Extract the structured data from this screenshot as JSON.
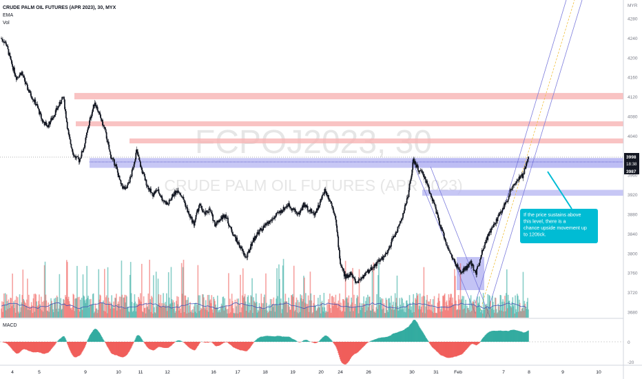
{
  "header": {
    "title": "CRUDE PALM OIL FUTURES (APR 2023), 30, MYX",
    "indicators": [
      "EMA",
      "Vol"
    ]
  },
  "watermark": {
    "symbol": "FCPOJ2023, 30",
    "name": "CRUDE PALM OIL FUTURES (APR 2023)"
  },
  "price_axis": {
    "currency": "MYR",
    "ticks": [
      "4280",
      "4240",
      "4200",
      "4160",
      "4120",
      "4080",
      "4040",
      "4000",
      "3960",
      "3920",
      "3880",
      "3840",
      "3800",
      "3760",
      "3720",
      "3680"
    ],
    "last_price": "3998",
    "countdown": "18:38",
    "second_price": "3987"
  },
  "time_axis": {
    "ticks": [
      "4",
      "5",
      "9",
      "10",
      "11",
      "12",
      "16",
      "17",
      "18",
      "19",
      "20",
      "24",
      "26",
      "30",
      "31",
      "Feb",
      "7",
      "8",
      "9",
      "10"
    ]
  },
  "macd": {
    "label": "MACD",
    "ticks": [
      "0",
      "-20"
    ]
  },
  "annotation": {
    "text": "If the price sustains above this level, there is a chance upside movement up to 120tick."
  },
  "colors": {
    "up": "#26a69a",
    "down": "#ef5350",
    "zone_red": "#f7b4b4",
    "zone_blue": "#b9b9f3",
    "callout": "#00bcd4",
    "channel": "#7b7bdc"
  },
  "chart_data": {
    "type": "candlestick",
    "title": "CRUDE PALM OIL FUTURES (APR 2023), 30, MYX",
    "ylim": [
      3665,
      4300
    ],
    "price_path": [
      4240,
      4230,
      4190,
      4160,
      4170,
      4140,
      4120,
      4100,
      4070,
      4060,
      4080,
      4100,
      4120,
      4040,
      4000,
      3990,
      4020,
      4070,
      4110,
      4080,
      4050,
      4000,
      3980,
      3940,
      3930,
      3960,
      4010,
      3970,
      3940,
      3920,
      3930,
      3910,
      3900,
      3920,
      3930,
      3910,
      3880,
      3860,
      3900,
      3880,
      3890,
      3860,
      3870,
      3880,
      3850,
      3830,
      3810,
      3790,
      3820,
      3840,
      3850,
      3860,
      3870,
      3880,
      3890,
      3900,
      3890,
      3880,
      3900,
      3890,
      3880,
      3900,
      3930,
      3910,
      3880,
      3780,
      3750,
      3760,
      3740,
      3750,
      3760,
      3770,
      3780,
      3790,
      3800,
      3830,
      3850,
      3880,
      3920,
      3990,
      3970,
      3960,
      3930,
      3900,
      3860,
      3830,
      3800,
      3780,
      3760,
      3770,
      3780,
      3760,
      3800,
      3830,
      3850,
      3870,
      3890,
      3910,
      3940,
      3950,
      3960,
      3998
    ],
    "zones": [
      {
        "kind": "resistance",
        "from": 4115,
        "to": 4128
      },
      {
        "kind": "resistance",
        "from": 4060,
        "to": 4070
      },
      {
        "kind": "resistance",
        "from": 4025,
        "to": 4035
      },
      {
        "kind": "breakout",
        "from": 3975,
        "to": 3995
      },
      {
        "kind": "support",
        "from": 3918,
        "to": 3930
      }
    ]
  }
}
